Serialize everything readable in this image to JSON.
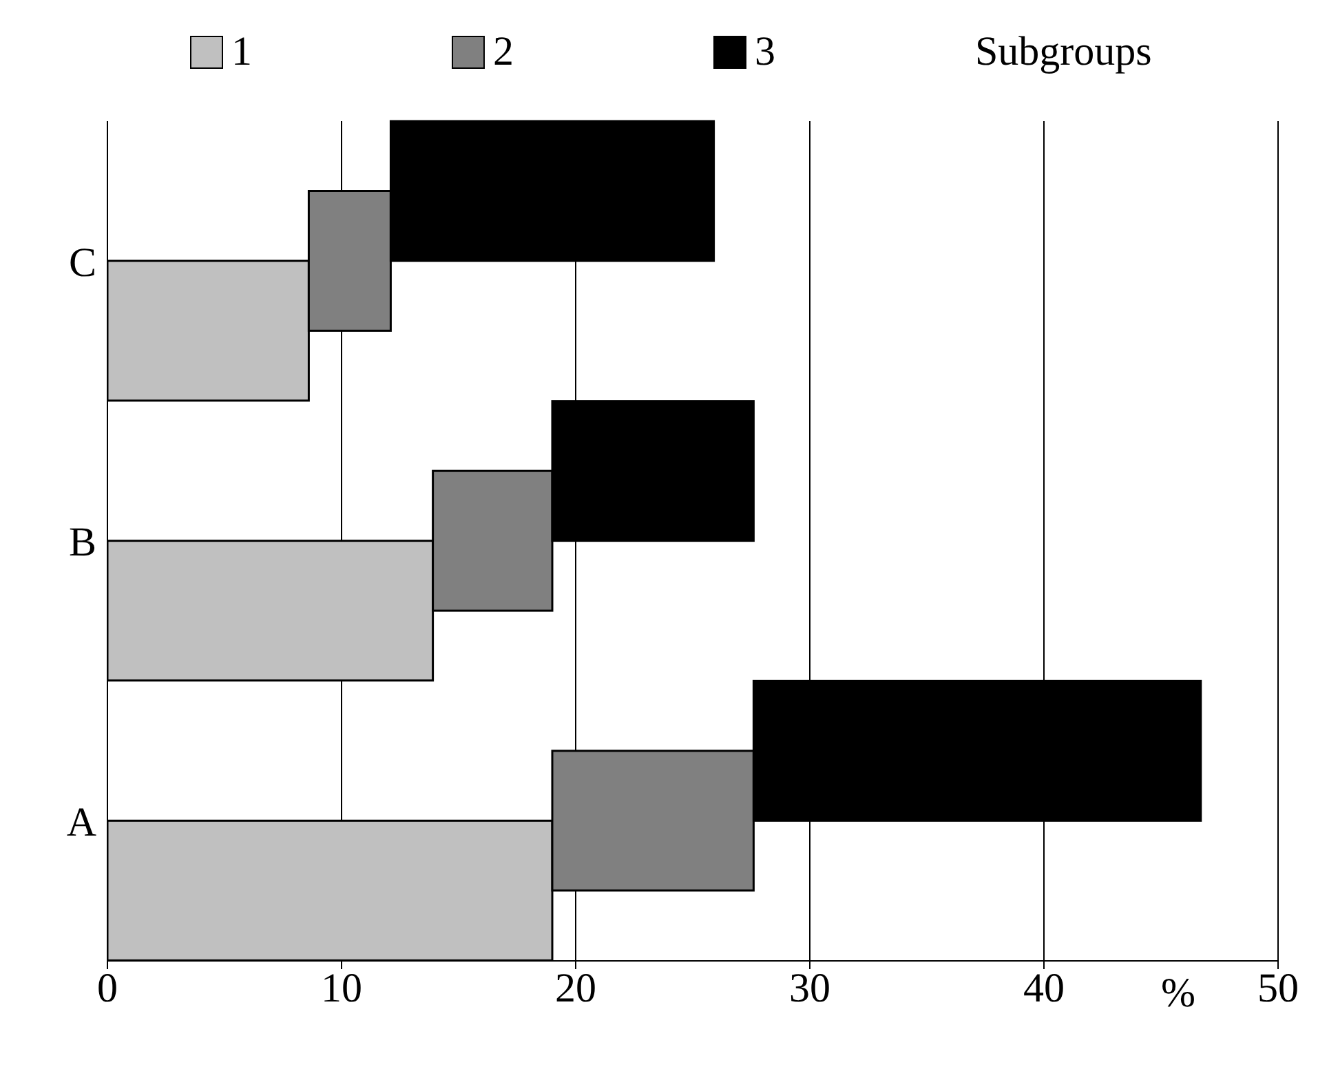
{
  "chart_data": {
    "type": "bar",
    "orientation": "horizontal",
    "stacked": true,
    "categories": [
      "C",
      "B",
      "A"
    ],
    "series": [
      {
        "name": "1",
        "color": "#c0c0c0",
        "values": [
          8.6,
          13.9,
          19
        ]
      },
      {
        "name": "2",
        "color": "#808080",
        "values": [
          3.5,
          5.1,
          8.6
        ]
      },
      {
        "name": "3",
        "color": "#000000",
        "values": [
          13.8,
          8.6,
          19.1
        ]
      }
    ],
    "xlabel": "%",
    "xlim": [
      0,
      50
    ],
    "xticks": [
      0,
      10,
      20,
      30,
      40,
      50
    ],
    "grid": "x",
    "legend": "top",
    "legend_title": "Subgroups"
  }
}
